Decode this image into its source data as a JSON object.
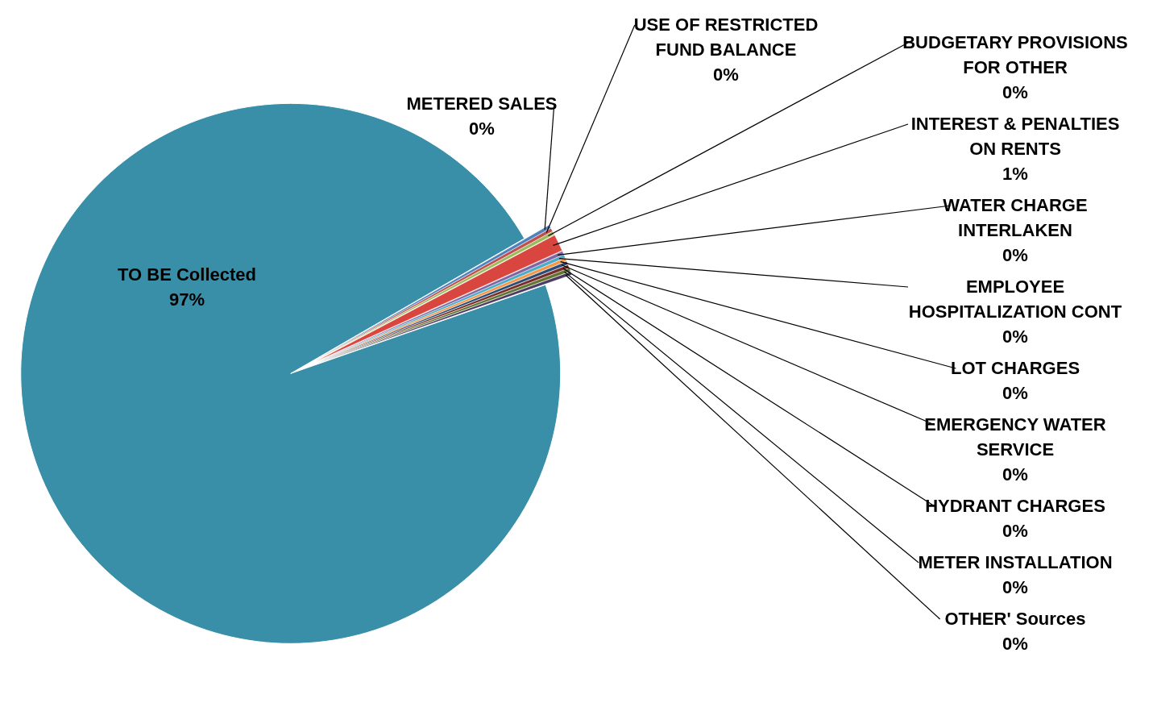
{
  "chart_data": {
    "type": "pie",
    "categories": [
      "METERED SALES",
      "USE OF RESTRICTED FUND BALANCE",
      "BUDGETARY PROVISIONS FOR OTHER",
      "INTEREST & PENALTIES ON RENTS",
      "WATER CHARGE INTERLAKEN",
      "EMPLOYEE HOSPITALIZATION CONT",
      "LOT CHARGES",
      "EMERGENCY WATER SERVICE",
      "HYDRANT CHARGES",
      "METER INSTALLATION",
      "OTHER' Sources",
      "TO BE Collected"
    ],
    "values": [
      0.2,
      0.2,
      0.2,
      1,
      0.2,
      0.2,
      0.2,
      0.2,
      0.2,
      0.2,
      0.2,
      97
    ],
    "value_labels": [
      "0%",
      "0%",
      "0%",
      "1%",
      "0%",
      "0%",
      "0%",
      "0%",
      "0%",
      "0%",
      "0%",
      "97%"
    ],
    "colors": [
      "#4f81bd",
      "#c0504d",
      "#9bbb59",
      "#d9463f",
      "#8064a2",
      "#4bacc6",
      "#f79646",
      "#2c4d75",
      "#772c2a",
      "#5f7530",
      "#4d3b62",
      "#3a8fa8"
    ],
    "legend": false
  }
}
